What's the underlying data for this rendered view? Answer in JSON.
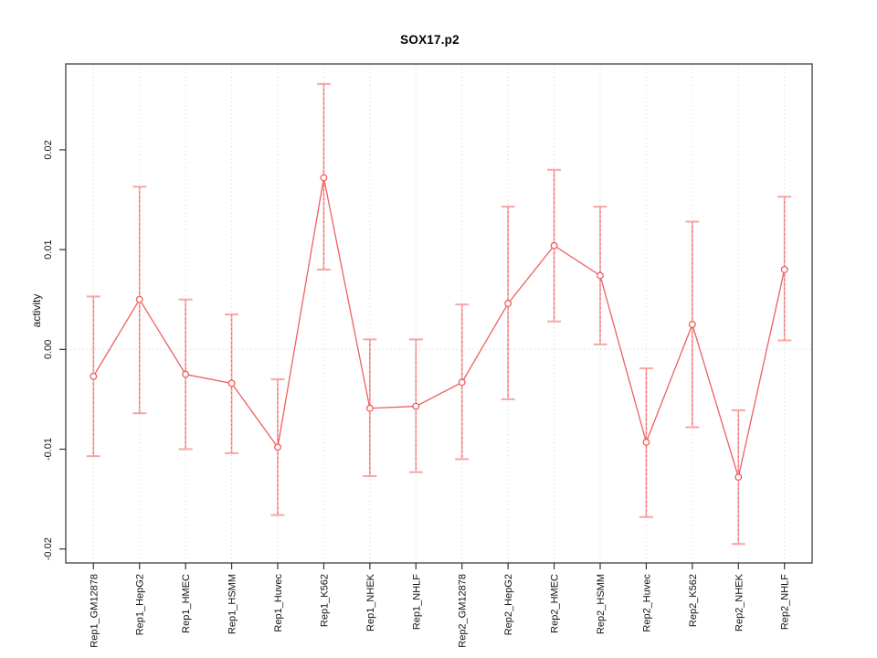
{
  "chart_data": {
    "type": "line",
    "title": "SOX17.p2",
    "xlabel": "",
    "ylabel": "activity",
    "legend": "none",
    "grid": "vertical dotted gridline at each category; dotted horizontal line at y=0",
    "categories": [
      "Rep1_GM12878",
      "Rep1_HepG2",
      "Rep1_HMEC",
      "Rep1_HSMM",
      "Rep1_Huvec",
      "Rep1_K562",
      "Rep1_NHEK",
      "Rep1_NHLF",
      "Rep2_GM12878",
      "Rep2_HepG2",
      "Rep2_HMEC",
      "Rep2_HSMM",
      "Rep2_Huvec",
      "Rep2_K562",
      "Rep2_NHEK",
      "Rep2_NHLF"
    ],
    "series": [
      {
        "name": "activity",
        "values": [
          -0.0027,
          0.005,
          -0.0025,
          -0.0034,
          -0.0098,
          0.0172,
          -0.0059,
          -0.0057,
          -0.0033,
          0.0046,
          0.0104,
          0.0074,
          -0.0093,
          0.0025,
          -0.0128,
          0.008
        ],
        "upper": [
          0.0053,
          0.0163,
          0.005,
          0.0035,
          -0.003,
          0.0266,
          0.001,
          0.001,
          0.0045,
          0.0143,
          0.018,
          0.0143,
          -0.0019,
          0.0128,
          -0.0061,
          0.0153
        ],
        "lower": [
          -0.0107,
          -0.0064,
          -0.01,
          -0.0104,
          -0.0166,
          0.008,
          -0.0127,
          -0.0123,
          -0.011,
          -0.005,
          0.0028,
          0.0005,
          -0.0168,
          -0.0078,
          -0.0195,
          0.0009
        ]
      }
    ],
    "ylim": [
      -0.0214,
      0.0286
    ],
    "yticks": [
      0.02,
      0.01,
      0.0,
      -0.01,
      -0.02
    ],
    "ytick_labels": [
      "0.02",
      "0.01",
      "0.00",
      "-0.01",
      "-0.02"
    ],
    "marker": "open-circle",
    "colors": {
      "line": "#ee5f5f",
      "marker": "#ee5f5f",
      "errorbar": "#f7a6a6",
      "errorbar_dash": "#e96161",
      "gridline": "#dedede",
      "zero_line": "#d8d8d8",
      "frame": "#4d4d4d",
      "tick": "#333333",
      "text": "#111111"
    }
  }
}
